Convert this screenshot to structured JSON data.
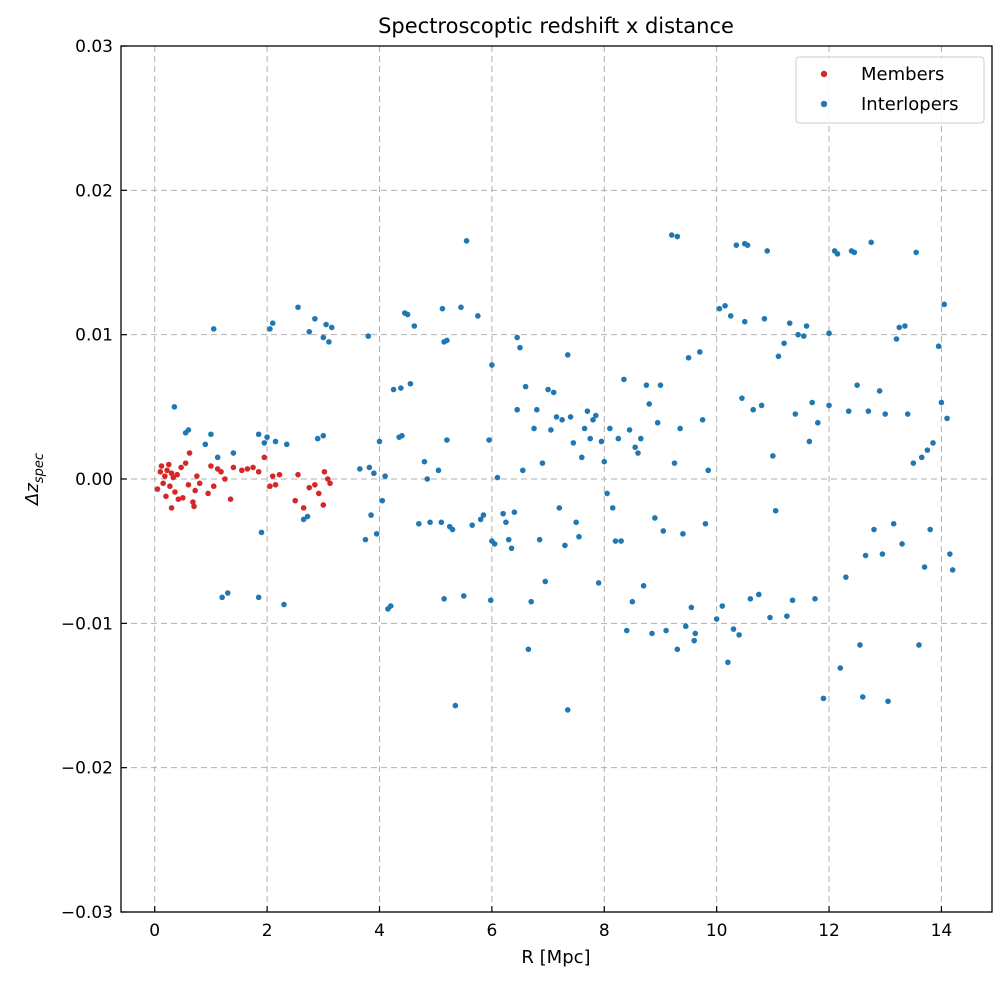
{
  "chart_data": {
    "type": "scatter",
    "title": "Spectroscoptic redshift x distance",
    "xlabel": "R [Mpc]",
    "ylabel_base": "Δz",
    "ylabel_sub": "spec",
    "xlim": [
      -0.6,
      14.9
    ],
    "ylim": [
      -0.03,
      0.03
    ],
    "xticks": [
      0,
      2,
      4,
      6,
      8,
      10,
      12,
      14
    ],
    "xtick_labels": [
      "0",
      "2",
      "4",
      "6",
      "8",
      "10",
      "12",
      "14"
    ],
    "yticks": [
      -0.03,
      -0.02,
      -0.01,
      0.0,
      0.01,
      0.02,
      0.03
    ],
    "ytick_labels": [
      "−0.03",
      "−0.02",
      "−0.01",
      "0.00",
      "0.01",
      "0.02",
      "0.03"
    ],
    "grid": true,
    "legend_position": "top-right",
    "series": [
      {
        "name": "Members",
        "color": "#d62728",
        "points": [
          [
            0.05,
            -0.0007
          ],
          [
            0.1,
            0.0005
          ],
          [
            0.12,
            0.0009
          ],
          [
            0.15,
            -0.0003
          ],
          [
            0.18,
            0.0002
          ],
          [
            0.2,
            -0.0012
          ],
          [
            0.22,
            0.0006
          ],
          [
            0.25,
            0.001
          ],
          [
            0.27,
            -0.0005
          ],
          [
            0.3,
            0.0004
          ],
          [
            0.3,
            -0.002
          ],
          [
            0.33,
            0.0001
          ],
          [
            0.36,
            -0.0009
          ],
          [
            0.4,
            0.0003
          ],
          [
            0.42,
            -0.0014
          ],
          [
            0.47,
            0.0008
          ],
          [
            0.5,
            -0.0013
          ],
          [
            0.55,
            0.0011
          ],
          [
            0.6,
            -0.0004
          ],
          [
            0.62,
            0.0018
          ],
          [
            0.68,
            -0.0016
          ],
          [
            0.7,
            -0.0019
          ],
          [
            0.72,
            -0.0008
          ],
          [
            0.75,
            0.0002
          ],
          [
            0.8,
            -0.0003
          ],
          [
            0.95,
            -0.001
          ],
          [
            1.0,
            0.0009
          ],
          [
            1.05,
            -0.0005
          ],
          [
            1.12,
            0.0007
          ],
          [
            1.18,
            0.0005
          ],
          [
            1.25,
            0.0
          ],
          [
            1.35,
            -0.0014
          ],
          [
            1.4,
            0.0008
          ],
          [
            1.55,
            0.0006
          ],
          [
            1.65,
            0.0007
          ],
          [
            1.75,
            0.0008
          ],
          [
            1.85,
            0.0005
          ],
          [
            1.95,
            0.0015
          ],
          [
            2.05,
            -0.0005
          ],
          [
            2.1,
            0.0002
          ],
          [
            2.15,
            -0.0004
          ],
          [
            2.22,
            0.0003
          ],
          [
            2.5,
            -0.0015
          ],
          [
            2.55,
            0.0003
          ],
          [
            2.65,
            -0.002
          ],
          [
            2.75,
            -0.0006
          ],
          [
            2.85,
            -0.0004
          ],
          [
            2.92,
            -0.001
          ],
          [
            3.0,
            -0.0018
          ],
          [
            3.02,
            0.0005
          ],
          [
            3.08,
            0.0
          ],
          [
            3.12,
            -0.0003
          ]
        ]
      },
      {
        "name": "Interlopers",
        "color": "#1f77b4",
        "points": [
          [
            0.35,
            0.005
          ],
          [
            0.55,
            0.0032
          ],
          [
            0.6,
            0.0034
          ],
          [
            0.9,
            0.0024
          ],
          [
            1.0,
            0.0031
          ],
          [
            1.05,
            0.0104
          ],
          [
            1.12,
            0.0015
          ],
          [
            1.2,
            -0.0082
          ],
          [
            1.3,
            -0.0079
          ],
          [
            1.4,
            0.0018
          ],
          [
            1.85,
            0.0031
          ],
          [
            1.9,
            -0.0037
          ],
          [
            1.85,
            -0.0082
          ],
          [
            1.95,
            0.0025
          ],
          [
            2.0,
            0.0029
          ],
          [
            2.05,
            0.0104
          ],
          [
            2.1,
            0.0108
          ],
          [
            2.15,
            0.0026
          ],
          [
            2.3,
            -0.0087
          ],
          [
            2.35,
            0.0024
          ],
          [
            2.55,
            0.0119
          ],
          [
            2.65,
            -0.0028
          ],
          [
            2.72,
            -0.0026
          ],
          [
            2.75,
            0.0102
          ],
          [
            2.85,
            0.0111
          ],
          [
            2.9,
            0.0028
          ],
          [
            3.0,
            0.003
          ],
          [
            3.0,
            0.0098
          ],
          [
            3.05,
            0.0107
          ],
          [
            3.1,
            0.0095
          ],
          [
            3.15,
            0.0105
          ],
          [
            3.65,
            0.0007
          ],
          [
            3.8,
            0.0099
          ],
          [
            3.82,
            0.0008
          ],
          [
            3.75,
            -0.0042
          ],
          [
            3.9,
            0.0004
          ],
          [
            3.85,
            -0.0025
          ],
          [
            3.95,
            -0.0038
          ],
          [
            4.0,
            0.0026
          ],
          [
            4.05,
            -0.0015
          ],
          [
            4.1,
            0.0002
          ],
          [
            4.15,
            -0.009
          ],
          [
            4.2,
            -0.0088
          ],
          [
            4.25,
            0.0062
          ],
          [
            4.35,
            0.0029
          ],
          [
            4.38,
            0.0063
          ],
          [
            4.4,
            0.003
          ],
          [
            4.45,
            0.0115
          ],
          [
            4.5,
            0.0114
          ],
          [
            4.55,
            0.0066
          ],
          [
            4.62,
            0.0106
          ],
          [
            4.7,
            -0.0031
          ],
          [
            4.8,
            0.0012
          ],
          [
            4.85,
            0.0
          ],
          [
            4.9,
            -0.003
          ],
          [
            5.05,
            0.0006
          ],
          [
            5.1,
            -0.003
          ],
          [
            5.12,
            0.0118
          ],
          [
            5.15,
            0.0095
          ],
          [
            5.15,
            -0.0083
          ],
          [
            5.2,
            0.0096
          ],
          [
            5.2,
            0.0027
          ],
          [
            5.25,
            -0.0033
          ],
          [
            5.3,
            -0.0035
          ],
          [
            5.35,
            -0.0157
          ],
          [
            5.45,
            0.0119
          ],
          [
            5.5,
            -0.0081
          ],
          [
            5.55,
            0.0165
          ],
          [
            5.65,
            -0.0032
          ],
          [
            5.75,
            0.0113
          ],
          [
            5.8,
            -0.0028
          ],
          [
            5.85,
            -0.0025
          ],
          [
            5.95,
            0.0027
          ],
          [
            5.98,
            -0.0084
          ],
          [
            6.0,
            0.0079
          ],
          [
            6.0,
            -0.0043
          ],
          [
            6.05,
            -0.0045
          ],
          [
            6.1,
            0.0001
          ],
          [
            6.2,
            -0.0024
          ],
          [
            6.25,
            -0.003
          ],
          [
            6.3,
            -0.0042
          ],
          [
            6.35,
            -0.0048
          ],
          [
            6.4,
            -0.0023
          ],
          [
            6.45,
            0.0048
          ],
          [
            6.45,
            0.0098
          ],
          [
            6.5,
            0.0091
          ],
          [
            6.55,
            0.0006
          ],
          [
            6.6,
            0.0064
          ],
          [
            6.65,
            -0.0118
          ],
          [
            6.7,
            -0.0085
          ],
          [
            6.75,
            0.0035
          ],
          [
            6.8,
            0.0048
          ],
          [
            6.85,
            -0.0042
          ],
          [
            6.9,
            0.0011
          ],
          [
            6.95,
            -0.0071
          ],
          [
            7.0,
            0.0062
          ],
          [
            7.05,
            0.0034
          ],
          [
            7.1,
            0.006
          ],
          [
            7.15,
            0.0043
          ],
          [
            7.2,
            -0.002
          ],
          [
            7.25,
            0.0041
          ],
          [
            7.3,
            -0.0046
          ],
          [
            7.35,
            0.0086
          ],
          [
            7.35,
            -0.016
          ],
          [
            7.4,
            0.0043
          ],
          [
            7.45,
            0.0025
          ],
          [
            7.5,
            -0.003
          ],
          [
            7.55,
            -0.004
          ],
          [
            7.6,
            0.0015
          ],
          [
            7.65,
            0.0035
          ],
          [
            7.7,
            0.0047
          ],
          [
            7.75,
            0.0028
          ],
          [
            7.8,
            0.0041
          ],
          [
            7.85,
            0.0044
          ],
          [
            7.9,
            -0.0072
          ],
          [
            7.95,
            0.0026
          ],
          [
            8.0,
            0.0012
          ],
          [
            8.05,
            -0.001
          ],
          [
            8.1,
            0.0035
          ],
          [
            8.15,
            -0.002
          ],
          [
            8.2,
            -0.0043
          ],
          [
            8.25,
            0.0028
          ],
          [
            8.3,
            -0.0043
          ],
          [
            8.35,
            0.0069
          ],
          [
            8.4,
            -0.0105
          ],
          [
            8.45,
            0.0034
          ],
          [
            8.5,
            -0.0085
          ],
          [
            8.55,
            0.0022
          ],
          [
            8.6,
            0.0018
          ],
          [
            8.65,
            0.0028
          ],
          [
            8.7,
            -0.0074
          ],
          [
            8.75,
            0.0065
          ],
          [
            8.8,
            0.0052
          ],
          [
            8.85,
            -0.0107
          ],
          [
            8.9,
            -0.0027
          ],
          [
            8.95,
            0.0039
          ],
          [
            9.0,
            0.0065
          ],
          [
            9.05,
            -0.0036
          ],
          [
            9.1,
            -0.0105
          ],
          [
            9.2,
            0.0169
          ],
          [
            9.25,
            0.0011
          ],
          [
            9.3,
            -0.0118
          ],
          [
            9.3,
            0.0168
          ],
          [
            9.35,
            0.0035
          ],
          [
            9.4,
            -0.0038
          ],
          [
            9.45,
            -0.0102
          ],
          [
            9.5,
            0.0084
          ],
          [
            9.55,
            -0.0089
          ],
          [
            9.6,
            -0.0112
          ],
          [
            9.62,
            -0.0107
          ],
          [
            9.7,
            0.0088
          ],
          [
            9.75,
            0.0041
          ],
          [
            9.8,
            -0.0031
          ],
          [
            9.85,
            0.0006
          ],
          [
            10.0,
            -0.0097
          ],
          [
            10.05,
            0.0118
          ],
          [
            10.1,
            -0.0088
          ],
          [
            10.15,
            0.012
          ],
          [
            10.2,
            -0.0127
          ],
          [
            10.25,
            0.0113
          ],
          [
            10.3,
            -0.0104
          ],
          [
            10.35,
            0.0162
          ],
          [
            10.4,
            -0.0108
          ],
          [
            10.45,
            0.0056
          ],
          [
            10.5,
            0.0109
          ],
          [
            10.5,
            0.0163
          ],
          [
            10.55,
            0.0162
          ],
          [
            10.6,
            -0.0083
          ],
          [
            10.65,
            0.0048
          ],
          [
            10.75,
            -0.008
          ],
          [
            10.8,
            0.0051
          ],
          [
            10.85,
            0.0111
          ],
          [
            10.9,
            0.0158
          ],
          [
            10.95,
            -0.0096
          ],
          [
            11.0,
            0.0016
          ],
          [
            11.05,
            -0.0022
          ],
          [
            11.1,
            0.0085
          ],
          [
            11.2,
            0.0094
          ],
          [
            11.25,
            -0.0095
          ],
          [
            11.3,
            0.0108
          ],
          [
            11.35,
            -0.0084
          ],
          [
            11.4,
            0.0045
          ],
          [
            11.45,
            0.01
          ],
          [
            11.55,
            0.0099
          ],
          [
            11.6,
            0.0106
          ],
          [
            11.65,
            0.0026
          ],
          [
            11.7,
            0.0053
          ],
          [
            11.75,
            -0.0083
          ],
          [
            11.8,
            0.0039
          ],
          [
            11.9,
            -0.0152
          ],
          [
            12.0,
            0.0051
          ],
          [
            12.0,
            0.0101
          ],
          [
            12.1,
            0.0158
          ],
          [
            12.15,
            0.0156
          ],
          [
            12.2,
            -0.0131
          ],
          [
            12.3,
            -0.0068
          ],
          [
            12.35,
            0.0047
          ],
          [
            12.4,
            0.0158
          ],
          [
            12.45,
            0.0157
          ],
          [
            12.5,
            0.0065
          ],
          [
            12.55,
            -0.0115
          ],
          [
            12.6,
            -0.0151
          ],
          [
            12.65,
            -0.0053
          ],
          [
            12.7,
            0.0047
          ],
          [
            12.75,
            0.0164
          ],
          [
            12.8,
            -0.0035
          ],
          [
            12.9,
            0.0061
          ],
          [
            12.95,
            -0.0052
          ],
          [
            13.0,
            0.0045
          ],
          [
            13.05,
            -0.0154
          ],
          [
            13.15,
            -0.0031
          ],
          [
            13.2,
            0.0097
          ],
          [
            13.25,
            0.0105
          ],
          [
            13.3,
            -0.0045
          ],
          [
            13.35,
            0.0106
          ],
          [
            13.4,
            0.0045
          ],
          [
            13.5,
            0.0011
          ],
          [
            13.55,
            0.0157
          ],
          [
            13.6,
            -0.0115
          ],
          [
            13.65,
            0.0015
          ],
          [
            13.7,
            -0.0061
          ],
          [
            13.75,
            0.002
          ],
          [
            13.8,
            -0.0035
          ],
          [
            13.85,
            0.0025
          ],
          [
            13.95,
            0.0092
          ],
          [
            14.0,
            0.0053
          ],
          [
            14.05,
            0.0121
          ],
          [
            14.1,
            0.0042
          ],
          [
            14.15,
            -0.0052
          ],
          [
            14.2,
            -0.0063
          ]
        ]
      }
    ]
  }
}
